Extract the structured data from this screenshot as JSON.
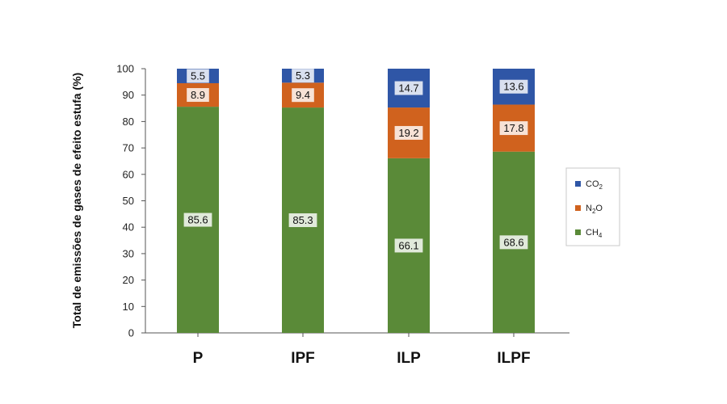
{
  "chart_data": {
    "type": "bar",
    "stacked": true,
    "categories": [
      "P",
      "IPF",
      "ILP",
      "ILPF"
    ],
    "series": [
      {
        "name": "CH4",
        "label_main": "CH",
        "label_sub": "4",
        "color": "#5a8a38",
        "values": [
          85.6,
          85.3,
          66.1,
          68.6
        ]
      },
      {
        "name": "N2O",
        "label_main": "N",
        "label_sub": "2",
        "label_tail": "O",
        "color": "#d0621e",
        "values": [
          8.9,
          9.4,
          19.2,
          17.8
        ]
      },
      {
        "name": "CO2",
        "label_main": "CO",
        "label_sub": "2",
        "color": "#2f56a6",
        "values": [
          5.5,
          5.3,
          14.7,
          13.6
        ]
      }
    ],
    "legend_order": [
      "CO2",
      "N2O",
      "CH4"
    ],
    "ylabel": "Total de emissões de gases de efeito estufa (%)",
    "xlabel": "",
    "ylim": [
      0,
      100
    ],
    "yticks": [
      0,
      10,
      20,
      30,
      40,
      50,
      60,
      70,
      80,
      90,
      100
    ],
    "grid": false,
    "legend_position": "right"
  }
}
